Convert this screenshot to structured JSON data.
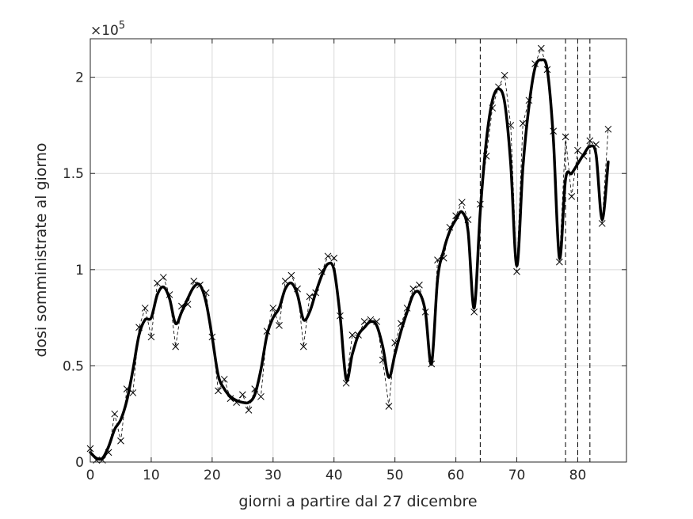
{
  "chart_data": {
    "type": "line",
    "title": "",
    "xlabel": "giorni a partire dal 27 dicembre",
    "ylabel": "dosi somministrate al giorno",
    "y_exponent_label": "×10",
    "y_exponent_power": "5",
    "xlim": [
      0,
      88
    ],
    "ylim": [
      0,
      2.2
    ],
    "y_scale_factor": 100000,
    "grid": true,
    "legend": "none",
    "x_ticks": [
      {
        "value": 0,
        "label": "0"
      },
      {
        "value": 10,
        "label": "10"
      },
      {
        "value": 20,
        "label": "20"
      },
      {
        "value": 30,
        "label": "30"
      },
      {
        "value": 40,
        "label": "40"
      },
      {
        "value": 50,
        "label": "50"
      },
      {
        "value": 60,
        "label": "60"
      },
      {
        "value": 70,
        "label": "70"
      },
      {
        "value": 80,
        "label": "80"
      }
    ],
    "y_ticks": [
      {
        "value": 0,
        "label": "0"
      },
      {
        "value": 0.5,
        "label": "0.5"
      },
      {
        "value": 1,
        "label": "1"
      },
      {
        "value": 1.5,
        "label": "1.5"
      },
      {
        "value": 2,
        "label": "2"
      }
    ],
    "vertical_lines": [
      64,
      78,
      80,
      82
    ],
    "colors": {
      "smooth": "#000000",
      "raw": "#000000",
      "grid": "#d9d9d9",
      "axis": "#262626"
    },
    "series": [
      {
        "style": "raw-dashed-x-markers",
        "x": [
          0,
          1,
          2,
          3,
          4,
          5,
          6,
          7,
          8,
          9,
          10,
          11,
          12,
          13,
          14,
          15,
          16,
          17,
          18,
          19,
          20,
          21,
          22,
          23,
          24,
          25,
          26,
          27,
          28,
          29,
          30,
          31,
          32,
          33,
          34,
          35,
          36,
          37,
          38,
          39,
          40,
          41,
          42,
          43,
          44,
          45,
          46,
          47,
          48,
          49,
          50,
          51,
          52,
          53,
          54,
          55,
          56,
          57,
          58,
          59,
          60,
          61,
          62,
          63,
          64,
          65,
          66,
          67,
          68,
          69,
          70,
          71,
          72,
          73,
          74,
          75,
          76,
          77,
          78,
          79,
          80,
          81,
          82,
          83,
          84,
          85
        ],
        "y": [
          0.07,
          0.01,
          0.01,
          0.05,
          0.25,
          0.11,
          0.38,
          0.36,
          0.7,
          0.8,
          0.65,
          0.93,
          0.96,
          0.87,
          0.6,
          0.81,
          0.82,
          0.94,
          0.92,
          0.88,
          0.65,
          0.37,
          0.43,
          0.33,
          0.31,
          0.35,
          0.27,
          0.38,
          0.34,
          0.68,
          0.8,
          0.71,
          0.94,
          0.97,
          0.9,
          0.6,
          0.86,
          0.88,
          0.99,
          1.07,
          1.06,
          0.76,
          0.41,
          0.66,
          0.66,
          0.73,
          0.74,
          0.73,
          0.53,
          0.29,
          0.62,
          0.72,
          0.8,
          0.9,
          0.92,
          0.78,
          0.51,
          1.05,
          1.06,
          1.22,
          1.28,
          1.35,
          1.26,
          0.78,
          1.34,
          1.59,
          1.84,
          1.95,
          2.01,
          1.75,
          0.99,
          1.76,
          1.88,
          2.07,
          2.15,
          2.04,
          1.72,
          1.04,
          1.69,
          1.38,
          1.62,
          1.59,
          1.67,
          1.65,
          1.24,
          1.73
        ]
      },
      {
        "style": "smoothed-thick",
        "x": [
          0,
          1,
          2,
          3,
          4,
          5,
          6,
          7,
          8,
          9,
          10,
          11,
          12,
          13,
          14,
          15,
          16,
          17,
          18,
          19,
          20,
          21,
          22,
          23,
          24,
          25,
          26,
          27,
          28,
          29,
          30,
          31,
          32,
          33,
          34,
          35,
          36,
          37,
          38,
          39,
          40,
          41,
          42,
          43,
          44,
          45,
          46,
          47,
          48,
          49,
          50,
          51,
          52,
          53,
          54,
          55,
          56,
          57,
          58,
          59,
          60,
          61,
          62,
          63,
          64,
          65,
          66,
          67,
          68,
          69,
          70,
          71,
          72,
          73,
          74,
          75,
          76,
          77,
          78,
          79,
          80,
          81,
          82,
          83,
          84,
          85
        ],
        "y": [
          0.05,
          0.02,
          0.02,
          0.08,
          0.17,
          0.22,
          0.32,
          0.48,
          0.66,
          0.74,
          0.75,
          0.87,
          0.91,
          0.85,
          0.72,
          0.78,
          0.85,
          0.91,
          0.92,
          0.83,
          0.65,
          0.45,
          0.38,
          0.34,
          0.32,
          0.31,
          0.31,
          0.35,
          0.48,
          0.66,
          0.75,
          0.8,
          0.9,
          0.93,
          0.87,
          0.74,
          0.78,
          0.88,
          0.97,
          1.03,
          1.0,
          0.76,
          0.43,
          0.56,
          0.66,
          0.7,
          0.73,
          0.71,
          0.6,
          0.44,
          0.56,
          0.68,
          0.78,
          0.87,
          0.88,
          0.78,
          0.51,
          0.95,
          1.1,
          1.2,
          1.26,
          1.3,
          1.2,
          0.8,
          1.3,
          1.67,
          1.88,
          1.94,
          1.87,
          1.55,
          1.02,
          1.53,
          1.85,
          2.05,
          2.09,
          2.04,
          1.68,
          1.06,
          1.47,
          1.5,
          1.55,
          1.6,
          1.64,
          1.6,
          1.26,
          1.56
        ]
      }
    ]
  }
}
